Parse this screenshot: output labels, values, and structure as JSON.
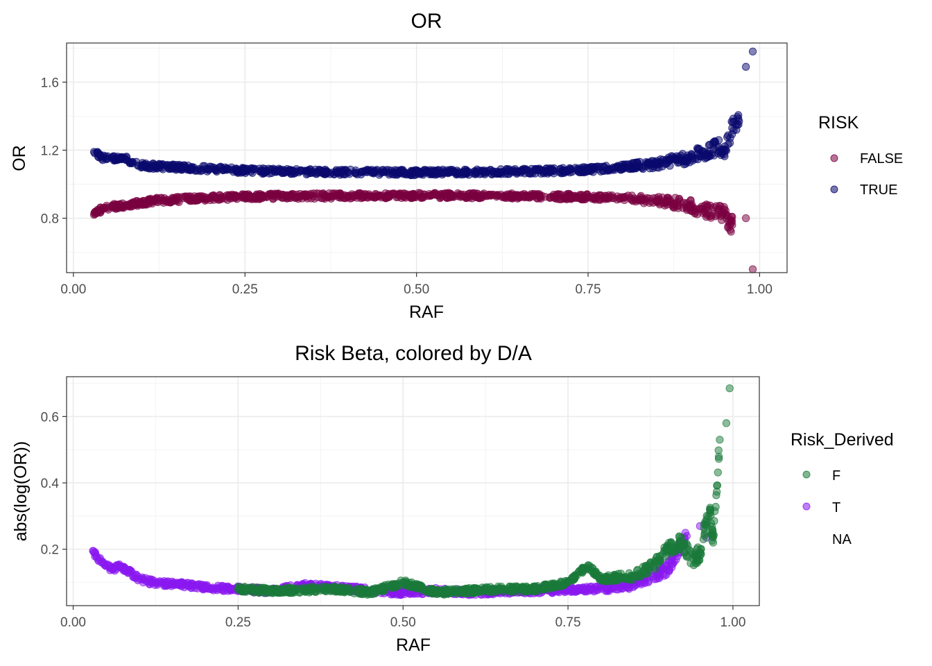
{
  "colors": {
    "false_risk": "#7a0040",
    "true_risk": "#0a0a6e",
    "derived_F": "#1a7a3a",
    "derived_T": "#8a18f0"
  },
  "chart_data": [
    {
      "type": "scatter",
      "title": "OR",
      "xlabel": "RAF",
      "ylabel": "OR",
      "xlim": [
        -0.01,
        1.04
      ],
      "ylim": [
        0.48,
        1.83
      ],
      "xticks": [
        0,
        0.25,
        0.5,
        0.75,
        1.0
      ],
      "xtick_labels": [
        "0.00",
        "0.25",
        "0.50",
        "0.75",
        "1.00"
      ],
      "yticks": [
        0.8,
        1.2,
        1.6
      ],
      "ytick_labels": [
        "0.8",
        "1.2",
        "1.6"
      ],
      "grid": true,
      "legend": {
        "title": "RISK",
        "position": "right",
        "entries": [
          "FALSE",
          "TRUE"
        ]
      },
      "series": [
        {
          "name": "FALSE",
          "color": "#7a0040",
          "x": [
            0.03,
            0.035,
            0.04,
            0.05,
            0.06,
            0.08,
            0.1,
            0.12,
            0.15,
            0.2,
            0.25,
            0.3,
            0.35,
            0.4,
            0.45,
            0.5,
            0.55,
            0.6,
            0.65,
            0.7,
            0.75,
            0.8,
            0.85,
            0.88,
            0.9,
            0.92,
            0.94,
            0.95,
            0.955,
            0.96,
            0.98,
            0.99
          ],
          "y": [
            0.82,
            0.84,
            0.85,
            0.86,
            0.87,
            0.88,
            0.89,
            0.905,
            0.91,
            0.92,
            0.925,
            0.93,
            0.93,
            0.932,
            0.933,
            0.933,
            0.933,
            0.932,
            0.93,
            0.928,
            0.925,
            0.92,
            0.905,
            0.89,
            0.87,
            0.85,
            0.83,
            0.82,
            0.78,
            0.76,
            0.8,
            0.5
          ]
        },
        {
          "name": "TRUE",
          "color": "#0a0a6e",
          "x": [
            0.03,
            0.035,
            0.04,
            0.05,
            0.06,
            0.07,
            0.1,
            0.12,
            0.15,
            0.2,
            0.25,
            0.3,
            0.35,
            0.4,
            0.45,
            0.5,
            0.55,
            0.6,
            0.65,
            0.7,
            0.75,
            0.8,
            0.85,
            0.88,
            0.9,
            0.92,
            0.94,
            0.95,
            0.96,
            0.97,
            0.98,
            0.99
          ],
          "y": [
            1.19,
            1.18,
            1.16,
            1.15,
            1.15,
            1.16,
            1.11,
            1.105,
            1.1,
            1.09,
            1.08,
            1.075,
            1.072,
            1.07,
            1.07,
            1.068,
            1.07,
            1.072,
            1.075,
            1.078,
            1.085,
            1.1,
            1.12,
            1.14,
            1.16,
            1.19,
            1.22,
            1.2,
            1.33,
            1.37,
            1.69,
            1.78
          ]
        }
      ]
    },
    {
      "type": "scatter",
      "title": "Risk Beta, colored by D/A",
      "xlabel": "RAF",
      "ylabel": "abs(log(OR))",
      "xlim": [
        -0.01,
        1.04
      ],
      "ylim": [
        0.03,
        0.72
      ],
      "xticks": [
        0,
        0.25,
        0.5,
        0.75,
        1.0
      ],
      "xtick_labels": [
        "0.00",
        "0.25",
        "0.50",
        "0.75",
        "1.00"
      ],
      "yticks": [
        0.2,
        0.4,
        0.6
      ],
      "ytick_labels": [
        "0.2",
        "0.4",
        "0.6"
      ],
      "grid": true,
      "legend": {
        "title": "Risk_Derived",
        "position": "right",
        "entries": [
          "F",
          "T",
          "NA"
        ]
      },
      "series": [
        {
          "name": "T",
          "color": "#8a18f0",
          "x": [
            0.03,
            0.035,
            0.04,
            0.045,
            0.05,
            0.06,
            0.07,
            0.08,
            0.1,
            0.12,
            0.15,
            0.18,
            0.2,
            0.25,
            0.3,
            0.35,
            0.4,
            0.45,
            0.5,
            0.55,
            0.6,
            0.7,
            0.8,
            0.85,
            0.9,
            0.93,
            0.95,
            0.96
          ],
          "y": [
            0.195,
            0.18,
            0.17,
            0.16,
            0.15,
            0.14,
            0.15,
            0.14,
            0.11,
            0.1,
            0.095,
            0.09,
            0.085,
            0.08,
            0.075,
            0.09,
            0.085,
            0.075,
            0.07,
            0.075,
            0.07,
            0.075,
            0.08,
            0.095,
            0.14,
            0.24,
            0.27,
            0.235
          ]
        },
        {
          "name": "F",
          "color": "#1a7a3a",
          "x": [
            0.25,
            0.3,
            0.4,
            0.45,
            0.5,
            0.55,
            0.6,
            0.65,
            0.7,
            0.75,
            0.78,
            0.8,
            0.85,
            0.88,
            0.9,
            0.92,
            0.94,
            0.95,
            0.96,
            0.965,
            0.97,
            0.98,
            0.99,
            0.995
          ],
          "y": [
            0.08,
            0.075,
            0.08,
            0.07,
            0.1,
            0.07,
            0.075,
            0.08,
            0.08,
            0.1,
            0.15,
            0.11,
            0.12,
            0.15,
            0.2,
            0.22,
            0.17,
            0.19,
            0.29,
            0.32,
            0.22,
            0.53,
            0.58,
            0.685
          ]
        }
      ]
    }
  ]
}
